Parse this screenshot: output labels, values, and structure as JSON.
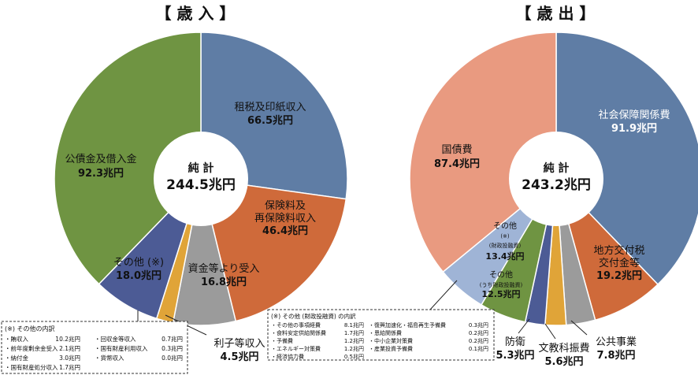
{
  "chart_data": [
    {
      "type": "pie",
      "title": "【 歳 入 】",
      "center_label": "純 計",
      "center_value": "244.5兆円",
      "series": [
        {
          "label": "租税及印紙収入",
          "value_label": "66.5兆円",
          "value": 66.5,
          "color": "#5f7da5"
        },
        {
          "label": "保険料及再保険料収入",
          "value_label": "46.4兆円",
          "value": 46.4,
          "color": "#cf6a3a"
        },
        {
          "label": "資金等より受入",
          "value_label": "16.8兆円",
          "value": 16.8,
          "color": "#9b9b9b"
        },
        {
          "label": "利子等収入",
          "value_label": "4.5兆円",
          "value": 4.5,
          "color": "#e0a438"
        },
        {
          "label": "その他 (※)",
          "value_label": "18.0兆円",
          "value": 18.0,
          "color": "#4c5b95"
        },
        {
          "label": "公債金及借入金",
          "value_label": "92.3兆円",
          "value": 92.3,
          "color": "#6f9442"
        }
      ],
      "note": {
        "title": "(※) その他の内訳",
        "rows": [
          [
            "・賄収入",
            "10.2兆円",
            "・回収金等収入",
            "0.7兆円"
          ],
          [
            "・前年度剰余金受入",
            "2.1兆円",
            "・国有財産利用収入",
            "0.3兆円"
          ],
          [
            "・納付金",
            "3.0兆円",
            "・貨幣収入",
            "0.0兆円"
          ],
          [
            "・国有財産処分収入",
            "1.7兆円",
            "",
            ""
          ]
        ]
      }
    },
    {
      "type": "pie",
      "title": "【 歳 出 】",
      "center_label": "純 計",
      "center_value": "243.2兆円",
      "series": [
        {
          "label": "社会保障関係費",
          "value_label": "91.9兆円",
          "value": 91.9,
          "color": "#5f7da5"
        },
        {
          "label": "地方交付税交付金等",
          "value_label": "19.2兆円",
          "value": 19.2,
          "color": "#cf6a3a"
        },
        {
          "label": "公共事業",
          "value_label": "7.8兆円",
          "value": 7.8,
          "color": "#9b9b9b"
        },
        {
          "label": "文教科振費",
          "value_label": "5.6兆円",
          "value": 5.6,
          "color": "#e0a438"
        },
        {
          "label": "防衛",
          "value_label": "5.3兆円",
          "value": 5.3,
          "color": "#4c5b95"
        },
        {
          "label": "その他 (うち財政投融資)",
          "value_label": "12.5兆円",
          "value": 12.5,
          "color": "#6f9442"
        },
        {
          "label": "その他 (※) (財政投融資)",
          "value_label": "13.4兆円",
          "value": 13.4,
          "color": "#9fb4d6"
        },
        {
          "label": "国債費",
          "value_label": "87.4兆円",
          "value": 87.4,
          "color": "#e99a80"
        }
      ],
      "labels": {
        "other_fiscal_line1": "その他",
        "other_fiscal_line2": "(※)",
        "other_fiscal_line3": "(財政投融資)",
        "other_general_line1": "その他",
        "other_general_line2": "(うち財政投融資)"
      },
      "note": {
        "title": "(※) その他 (財政投融資) の内訳",
        "rows": [
          [
            "・その他の事項経費",
            "8.1兆円",
            "・復興加速化・福島再生予備費",
            "0.3兆円"
          ],
          [
            "・食料安定供給関係費",
            "1.7兆円",
            "・恩給関係費",
            "0.2兆円"
          ],
          [
            "・予備費",
            "1.2兆円",
            "・中小企業対策費",
            "0.2兆円"
          ],
          [
            "・エネルギー対策費",
            "1.2兆円",
            "・産業投資予備費",
            "0.1兆円"
          ],
          [
            "・経済協力費",
            "0.5兆円",
            "",
            ""
          ]
        ]
      }
    }
  ]
}
